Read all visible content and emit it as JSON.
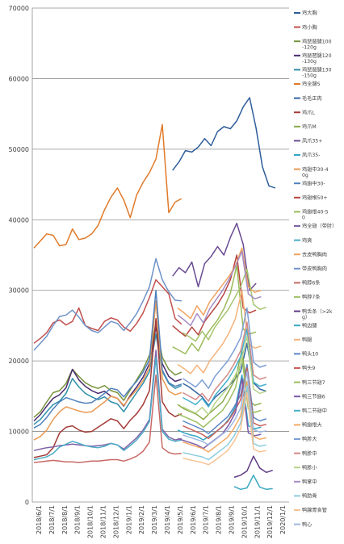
{
  "chart_data": {
    "type": "line",
    "title": "",
    "xlabel": "",
    "ylabel": "",
    "ylim": [
      0,
      70000
    ],
    "yticks": [
      0,
      10000,
      20000,
      30000,
      40000,
      50000,
      60000,
      70000
    ],
    "ytick_labels": [
      "0",
      "10000",
      "20000",
      "30000",
      "40000",
      "50000",
      "60000",
      "70000"
    ],
    "grid": true,
    "legend_position": "right",
    "x_ticks": [
      "2018/6/1",
      "2018/7/1",
      "2018/8/1",
      "2018/9/1",
      "2018/10/1",
      "2018/11/1",
      "2018/12/1",
      "2019/1/1",
      "2019/2/1",
      "2019/3/1",
      "2019/4/1",
      "2019/5/1",
      "2019/6/1",
      "2019/7/1",
      "2019/8/1",
      "2019/9/1",
      "2019/10/1",
      "2019/11/1",
      "2019/12/1",
      "2020/1/1"
    ],
    "series": [
      {
        "name": "鸡大胸",
        "color": "#2e5d9a",
        "start": 10.8,
        "values": [
          47000,
          48200,
          49800,
          49600,
          50300,
          51500,
          50500,
          52500,
          53200,
          52900,
          54000,
          56000,
          57300,
          53000,
          47500,
          44800,
          44500
        ]
      },
      {
        "name": "鸡小胸",
        "color": "#c0504d",
        "start": 0,
        "values": [
          22500,
          23200,
          24000,
          25400,
          25800,
          25100,
          25600,
          27500,
          25000,
          24600,
          24300,
          25600,
          26100,
          25800,
          24800,
          24200,
          25300,
          26800,
          29000,
          31500,
          30500,
          29500,
          26000,
          25200
        ]
      },
      {
        "name": "鸡琵琶腿100-120g",
        "color": "#77933c",
        "start": 0,
        "values": [
          12000,
          12800,
          14200,
          15500,
          15800,
          16800,
          18800,
          17800,
          16900,
          16400,
          16100,
          16500,
          15800,
          15500,
          14400,
          15900,
          17300,
          18800,
          20800,
          25200,
          20500,
          18800,
          18000,
          18400
        ]
      },
      {
        "name": "鸡琵琶腿120-130g",
        "color": "#4b2b6e",
        "start": 0,
        "values": [
          11500,
          12400,
          13600,
          14700,
          15200,
          16200,
          18800,
          17300,
          16400,
          15800,
          15400,
          15700,
          15000,
          14700,
          13600,
          15100,
          16300,
          17700,
          19600,
          24800,
          19600,
          17800,
          17100,
          17400
        ]
      },
      {
        "name": "鸡琵琶腿130-150g",
        "color": "#2f8fa8",
        "start": 0,
        "values": [
          11000,
          11700,
          12800,
          13800,
          14300,
          15400,
          17500,
          16300,
          15400,
          14900,
          14500,
          14900,
          14200,
          13900,
          12800,
          14200,
          15500,
          16800,
          18500,
          23800,
          18500,
          16800,
          16100,
          16500
        ]
      },
      {
        "name": "鸡全腿S",
        "color": "#e07a2a",
        "start": 0,
        "values": [
          36000,
          37000,
          38000,
          37800,
          36300,
          36500,
          38700,
          37200,
          37400,
          38000,
          39200,
          41400,
          43200,
          44500,
          42800,
          40300,
          43500,
          45300,
          46700,
          48600,
          53500,
          41000,
          42500,
          43000
        ]
      },
      {
        "name": "毛毛正肉",
        "color": "#3465a4",
        "start": 11.6,
        "values": [
          16800,
          16300,
          15600,
          14900,
          13700,
          14800,
          15600,
          16300,
          17300,
          18500,
          22500,
          16900,
          16000,
          15700
        ]
      },
      {
        "name": "鸡爪L",
        "color": "#a33a36",
        "start": 0,
        "values": [
          6300,
          6500,
          6700,
          7700,
          9800,
          10600,
          10800,
          10200,
          9900,
          10000,
          10600,
          11200,
          11800,
          11500,
          10400,
          11600,
          12500,
          13800,
          15800,
          26000,
          14200,
          12700,
          12100,
          12500
        ]
      },
      {
        "name": "鸡爪M",
        "color": "#8aab4a",
        "start": 11.2,
        "values": [
          13800,
          13200,
          12800,
          12400,
          11700,
          12600,
          13400,
          14200,
          15800,
          17500,
          21500,
          14500,
          13700,
          14000
        ]
      },
      {
        "name": "凤爪35+",
        "color": "#6a4c93",
        "start": 10.8,
        "values": [
          32000,
          33200,
          32500,
          34000,
          30500,
          33800,
          34800,
          36200,
          35000,
          37500,
          39500,
          36500,
          30000,
          31000
        ]
      },
      {
        "name": "凤爪35-",
        "color": "#31a6c4",
        "start": 11.2,
        "values": [
          10200,
          9800,
          9500,
          9300,
          8800,
          9400,
          10000,
          10700,
          11800,
          13500,
          18000,
          10800,
          10400,
          10600
        ]
      },
      {
        "name": "鸡翅中30-40g",
        "color": "#e99a52",
        "start": 0,
        "values": [
          8800,
          9300,
          10200,
          11700,
          12800,
          13500,
          13200,
          12900,
          12700,
          12800,
          13500,
          14200,
          15000,
          14700,
          13700,
          14900,
          15900,
          17200,
          19000,
          28500,
          17500,
          15700,
          15200,
          15500
        ]
      },
      {
        "name": "鸡翅中30-",
        "color": "#4f81bd",
        "start": 0,
        "values": [
          10500,
          11000,
          12000,
          13200,
          14200,
          14800,
          14500,
          14200,
          14000,
          14100,
          14700,
          15400,
          16100,
          15900,
          14900,
          16100,
          17100,
          18400,
          20200,
          30000,
          18700,
          16900,
          16400,
          16700
        ]
      },
      {
        "name": "鸡翅根50+",
        "color": "#b8433f",
        "start": 10.8,
        "values": [
          25000,
          24200,
          23500,
          24800,
          23700,
          25600,
          26800,
          28000,
          29500,
          31500,
          35000,
          27500,
          26800,
          27200
        ]
      },
      {
        "name": "鸡翅根40-50",
        "color": "#9bbb59",
        "start": 10.8,
        "values": [
          22000,
          21500,
          21000,
          22500,
          21400,
          23300,
          24600,
          25800,
          27400,
          29600,
          33500,
          24500,
          23800,
          24100
        ]
      },
      {
        "name": "鸡全翅（带肘）",
        "color": "#7f63a8",
        "start": 0,
        "values": [
          7300,
          7500,
          7700,
          7800,
          8000,
          8100,
          8200,
          8100,
          8000,
          7900,
          8000,
          8100,
          8300,
          8100,
          7500,
          8300,
          9100,
          10200,
          11700,
          21500,
          10300,
          9200,
          8800,
          9000
        ]
      },
      {
        "name": "鸡爽",
        "color": "#4bacc6",
        "start": 0,
        "values": [
          6000,
          6200,
          6400,
          6900,
          7800,
          8200,
          8600,
          8300,
          8000,
          7800,
          7700,
          7900,
          8300,
          8100,
          7300,
          8000,
          8800,
          9900,
          11400,
          20500,
          10000,
          8900,
          8600,
          8800
        ]
      },
      {
        "name": "去皮鸭胸肉",
        "color": "#f2a25f",
        "start": 11.2,
        "values": [
          27500,
          26800,
          26000,
          27800,
          26500,
          28400,
          29600,
          30800,
          32000,
          33500,
          36000,
          30500,
          29700,
          30000
        ]
      },
      {
        "name": "带皮鸭胸肉",
        "color": "#6f93c8",
        "start": 0,
        "values": [
          21500,
          22500,
          23500,
          25000,
          26300,
          26500,
          27200,
          26200,
          25000,
          24300,
          24000,
          24800,
          25600,
          25300,
          24300,
          25400,
          26700,
          28500,
          30500,
          34500,
          31500,
          29800,
          28600,
          28500
        ]
      },
      {
        "name": "鸭脖6条",
        "color": "#c86a67",
        "start": 0,
        "values": [
          5600,
          5700,
          5800,
          5900,
          5800,
          5700,
          5700,
          5600,
          5700,
          5800,
          5800,
          5900,
          6000,
          6000,
          5800,
          6100,
          6500,
          7200,
          8500,
          18000,
          7700,
          7000,
          6800,
          6900
        ]
      },
      {
        "name": "鸭脖7条",
        "color": "#a5c46e",
        "start": 11.6,
        "values": [
          24000,
          23400,
          22800,
          24200,
          23000,
          24800,
          26000,
          27200,
          28800,
          30500,
          33000,
          28000,
          27300,
          27600
        ]
      },
      {
        "name": "鸭舌条（>2kg）",
        "color": "#5e3a84",
        "start": 15.6,
        "values": [
          3500,
          3800,
          4400,
          6500,
          4800,
          4200,
          4500
        ]
      },
      {
        "name": "鸭边腿",
        "color": "#3aa8c0",
        "start": 15.6,
        "values": [
          2200,
          1800,
          2000,
          3800,
          2100,
          1800,
          1900
        ]
      },
      {
        "name": "鸭腿",
        "color": "#f5b27a",
        "start": 11.2,
        "values": [
          19500,
          18900,
          18200,
          19400,
          18300,
          20000,
          21200,
          22400,
          24000,
          26000,
          30000,
          22500,
          21800,
          22100
        ]
      },
      {
        "name": "鸭头10",
        "color": "#5a86c5",
        "start": 11.6,
        "values": [
          11500,
          11100,
          10700,
          10300,
          9700,
          10500,
          11300,
          12100,
          13500,
          15200,
          19500,
          12000,
          11500,
          11800
        ]
      },
      {
        "name": "鸭头9",
        "color": "#c9605c",
        "start": 11.6,
        "values": [
          10800,
          10400,
          10000,
          9600,
          9000,
          9800,
          10600,
          11400,
          12800,
          14500,
          19000,
          11200,
          10800,
          11000
        ]
      },
      {
        "name": "鸭三节翅7",
        "color": "#9cbf5f",
        "start": 11.2,
        "values": [
          12500,
          12100,
          11700,
          11300,
          10600,
          11400,
          12200,
          13000,
          14400,
          16200,
          20500,
          13200,
          12700,
          13000
        ]
      },
      {
        "name": "鸭三节翅6",
        "color": "#7a5aa8",
        "start": 11.2,
        "values": [
          9000,
          8700,
          8400,
          8100,
          7600,
          8300,
          9000,
          9700,
          11000,
          12700,
          17500,
          9800,
          9400,
          9600
        ]
      },
      {
        "name": "鸭二节翅中",
        "color": "#45b0cc",
        "start": 11.6,
        "values": [
          14800,
          14300,
          13800,
          14700,
          13500,
          15100,
          16200,
          17300,
          18800,
          20600,
          24500,
          17000,
          16400,
          16700
        ]
      },
      {
        "name": "鸭翅根大",
        "color": "#f4a962",
        "start": 11.6,
        "values": [
          8500,
          8200,
          7900,
          7600,
          7100,
          7800,
          8500,
          9200,
          10500,
          12200,
          17000,
          9300,
          8900,
          9100
        ]
      },
      {
        "name": "鸭胗大",
        "color": "#7d9fd4",
        "start": 11.6,
        "values": [
          17500,
          16900,
          16300,
          17300,
          16100,
          17800,
          18900,
          20000,
          21500,
          23300,
          27500,
          19800,
          19100,
          19400
        ]
      },
      {
        "name": "鸭胗中",
        "color": "#d48a87",
        "start": 11.6,
        "values": [
          15500,
          15000,
          14500,
          15400,
          14300,
          15900,
          17000,
          18100,
          19600,
          21400,
          25500,
          18000,
          17400,
          17700
        ]
      },
      {
        "name": "鸭胗小",
        "color": "#b9d48a",
        "start": 11.6,
        "values": [
          13500,
          13000,
          12600,
          13400,
          12400,
          14000,
          15100,
          16200,
          17700,
          19500,
          23500,
          16000,
          15400,
          15700
        ]
      },
      {
        "name": "鸭掌中",
        "color": "#a48cc4",
        "start": 11.2,
        "values": [
          26500,
          25800,
          25000,
          26700,
          25400,
          27400,
          28700,
          30000,
          31600,
          33400,
          35500,
          29500,
          28800,
          29100
        ]
      },
      {
        "name": "鸭肋骨",
        "color": "#8ccce0",
        "start": 11.6,
        "values": [
          7000,
          6800,
          6600,
          6400,
          6000,
          6700,
          7400,
          8100,
          9400,
          11200,
          16500,
          8300,
          7900,
          8100
        ]
      },
      {
        "name": "鸭腺胃食管",
        "color": "#f7c394",
        "start": 11.6,
        "values": [
          6200,
          6000,
          5800,
          5600,
          5300,
          5900,
          6600,
          7300,
          8600,
          10400,
          15500,
          7500,
          7100,
          7300
        ]
      },
      {
        "name": "鸭心",
        "color": "#9fb7df",
        "start": 11.6,
        "values": [
          9500,
          9200,
          8900,
          8600,
          8100,
          8800,
          9500,
          10200,
          11500,
          13300,
          18500,
          10300,
          9900,
          10100
        ]
      }
    ]
  }
}
